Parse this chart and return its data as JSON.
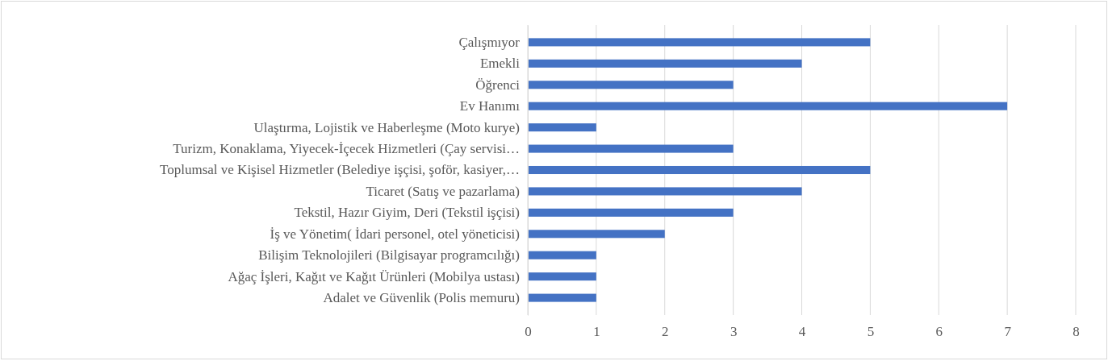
{
  "chart_data": {
    "type": "bar",
    "orientation": "horizontal",
    "categories": [
      "Çalışmıyor",
      "Emekli",
      "Öğrenci",
      "Ev Hanımı",
      "Ulaştırma, Lojistik ve Haberleşme (Moto kurye)",
      "Turizm, Konaklama, Yiyecek-İçecek Hizmetleri (Çay servisi…",
      "Toplumsal ve Kişisel Hizmetler (Belediye işçisi, şoför, kasiyer,…",
      "Ticaret (Satış ve pazarlama)",
      "Tekstil, Hazır Giyim, Deri (Tekstil işçisi)",
      "İş ve Yönetim( İdari personel,  otel yöneticisi)",
      "Bilişim Teknolojileri (Bilgisayar programcılığı)",
      "Ağaç İşleri, Kağıt ve Kağıt Ürünleri (Mobilya ustası)",
      "Adalet ve Güvenlik (Polis memuru)"
    ],
    "values": [
      5,
      4,
      3,
      7,
      1,
      3,
      5,
      4,
      3,
      2,
      1,
      1,
      1
    ],
    "color": "#4472c4",
    "xlim": [
      0,
      8
    ],
    "xticks": [
      0,
      1,
      2,
      3,
      4,
      5,
      6,
      7,
      8
    ],
    "grid": "x"
  }
}
